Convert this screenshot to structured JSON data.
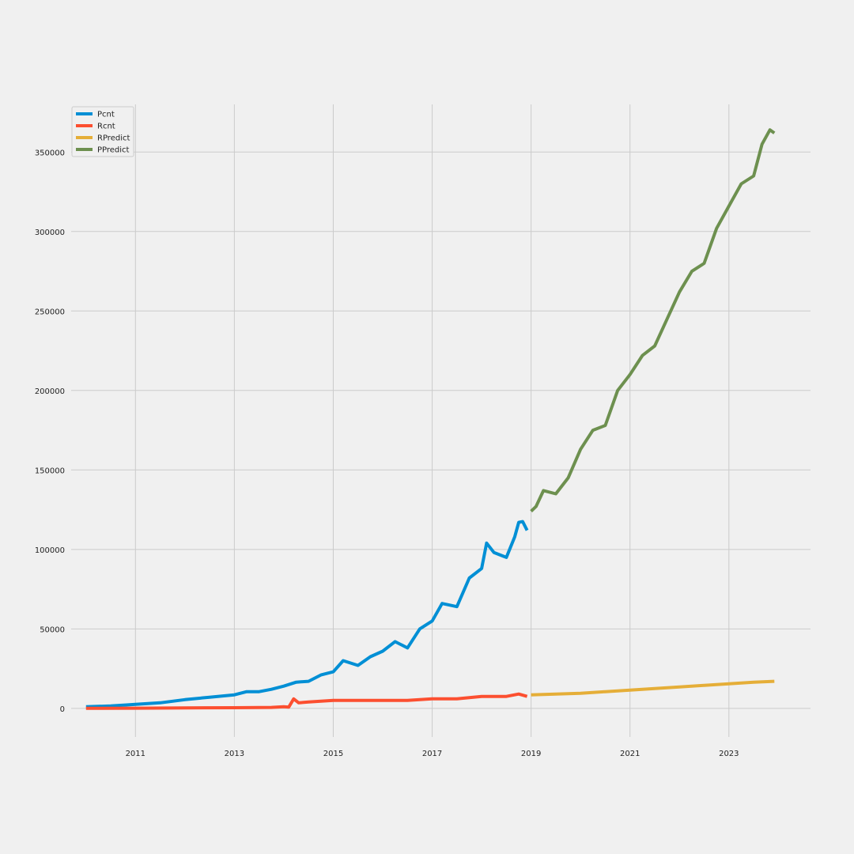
{
  "chart_data": {
    "type": "line",
    "title": "",
    "xlabel": "",
    "ylabel": "",
    "grid": true,
    "legend_position": "top-left",
    "xlim": [
      2009.7,
      2024.65
    ],
    "ylim": [
      -18000,
      380000
    ],
    "x_ticks": [
      2011,
      2013,
      2015,
      2017,
      2019,
      2021,
      2023
    ],
    "x_tick_labels": [
      "2011",
      "2013",
      "2015",
      "2017",
      "2019",
      "2021",
      "2023"
    ],
    "y_ticks": [
      0,
      50000,
      100000,
      150000,
      200000,
      250000,
      300000,
      350000
    ],
    "y_tick_labels": [
      "0",
      "50000",
      "100000",
      "150000",
      "200000",
      "250000",
      "300000",
      "350000"
    ],
    "series": [
      {
        "name": "Pcnt",
        "color": "#008fd5",
        "x": [
          2010.0,
          2010.5,
          2011.0,
          2011.5,
          2012.0,
          2012.5,
          2013.0,
          2013.25,
          2013.5,
          2013.75,
          2014.0,
          2014.25,
          2014.5,
          2014.75,
          2015.0,
          2015.2,
          2015.5,
          2015.75,
          2016.0,
          2016.25,
          2016.5,
          2016.75,
          2017.0,
          2017.2,
          2017.5,
          2017.75,
          2018.0,
          2018.1,
          2018.25,
          2018.5,
          2018.67,
          2018.75,
          2018.83,
          2018.92
        ],
        "y": [
          1000,
          1500,
          2500,
          3500,
          5500,
          7000,
          8500,
          10500,
          10500,
          12000,
          14000,
          16500,
          17000,
          21000,
          23000,
          30000,
          27000,
          32500,
          36000,
          42000,
          38000,
          50000,
          55000,
          66000,
          64000,
          82000,
          88000,
          104000,
          98000,
          95000,
          108000,
          117000,
          117500,
          112000
        ]
      },
      {
        "name": "Rcnt",
        "color": "#fc4f30",
        "x": [
          2010.0,
          2011.0,
          2012.0,
          2013.0,
          2013.75,
          2014.0,
          2014.1,
          2014.2,
          2014.3,
          2014.5,
          2015.0,
          2015.5,
          2016.0,
          2016.5,
          2017.0,
          2017.5,
          2018.0,
          2018.5,
          2018.75,
          2018.92
        ],
        "y": [
          0,
          100,
          300,
          400,
          600,
          1000,
          800,
          6000,
          3500,
          4000,
          5000,
          5000,
          5000,
          5000,
          6000,
          6000,
          7500,
          7500,
          9000,
          7500
        ]
      },
      {
        "name": "RPredict",
        "color": "#e5ae38",
        "x": [
          2019.0,
          2019.5,
          2020.0,
          2020.5,
          2021.0,
          2021.5,
          2022.0,
          2022.5,
          2023.0,
          2023.5,
          2023.92
        ],
        "y": [
          8500,
          9000,
          9500,
          10500,
          11500,
          12500,
          13500,
          14500,
          15500,
          16500,
          17000
        ]
      },
      {
        "name": "PPredict",
        "color": "#6d904f",
        "x": [
          2019.0,
          2019.1,
          2019.25,
          2019.5,
          2019.75,
          2020.0,
          2020.25,
          2020.5,
          2020.75,
          2021.0,
          2021.25,
          2021.5,
          2021.75,
          2022.0,
          2022.25,
          2022.5,
          2022.75,
          2023.0,
          2023.25,
          2023.5,
          2023.67,
          2023.83,
          2023.92
        ],
        "y": [
          124000,
          127000,
          137000,
          135000,
          145000,
          163000,
          175000,
          178000,
          200000,
          210000,
          222000,
          228000,
          245000,
          262000,
          275000,
          280000,
          302000,
          316000,
          330000,
          335000,
          355000,
          364000,
          362000
        ]
      }
    ]
  }
}
